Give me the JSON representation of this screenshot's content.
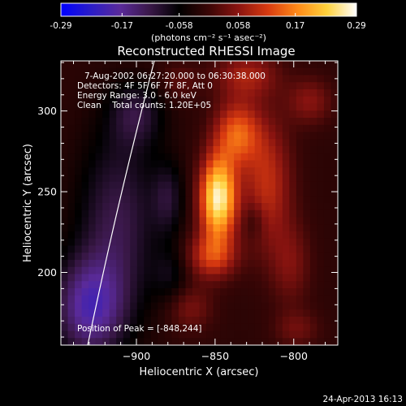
{
  "figure": {
    "title": "Reconstructed RHESSI Image",
    "info_lines": [
      "7-Aug-2002 06:27:20.000 to 06:30:38.000",
      "Detectors: 4F 5F 6F 7F 8F, Att 0",
      "Energy Range: 3.0 - 6.0 keV",
      "Clean    Total counts: 1.20E+05"
    ],
    "peak_label": "Position of Peak = [-848,244]",
    "footer_date": "24-Apr-2013 16:13"
  },
  "colorbar": {
    "ticks": [
      "-0.29",
      "-0.17",
      "-0.058",
      "0.058",
      "0.17",
      "0.29"
    ],
    "tick_values": [
      -0.29,
      -0.17,
      -0.058,
      0.058,
      0.17,
      0.29
    ],
    "range": [
      -0.29,
      0.29
    ],
    "unit_label": "(photons cm⁻² s⁻¹ asec⁻²)"
  },
  "colors": {
    "background": "#000000",
    "text": "#ffffff",
    "cmap": [
      "#0000ff",
      "#2a1cc8",
      "#5a2a9a",
      "#3a1848",
      "#000000",
      "#3a0606",
      "#8a1410",
      "#d83a10",
      "#ff8a18",
      "#ffd23c",
      "#ffffff"
    ]
  },
  "chart_data": {
    "type": "heatmap",
    "title": "Reconstructed RHESSI Image",
    "xlabel": "Heliocentric X (arcsec)",
    "ylabel": "Heliocentric Y (arcsec)",
    "xlim": [
      -948,
      -772
    ],
    "ylim": [
      155,
      331
    ],
    "xticks": [
      -900,
      -850,
      -800
    ],
    "xtick_labels": [
      "−900",
      "−850",
      "−800"
    ],
    "yticks": [
      200,
      250,
      300
    ],
    "ytick_labels": [
      "200",
      "250",
      "300"
    ],
    "peak": [
      -848,
      244
    ],
    "colorbar_range": [
      -0.29,
      0.29
    ],
    "sources": [
      {
        "x": -848,
        "y": 246,
        "sx": 8,
        "sy": 18,
        "amp": 0.29
      },
      {
        "x": -836,
        "y": 286,
        "sx": 10,
        "sy": 14,
        "amp": 0.15
      },
      {
        "x": -852,
        "y": 210,
        "sx": 11,
        "sy": 10,
        "amp": 0.12
      },
      {
        "x": -817,
        "y": 255,
        "sx": 11,
        "sy": 28,
        "amp": 0.11
      },
      {
        "x": -830,
        "y": 322,
        "sx": 14,
        "sy": 10,
        "amp": 0.09
      },
      {
        "x": -873,
        "y": 318,
        "sx": 9,
        "sy": 8,
        "amp": 0.04
      },
      {
        "x": -790,
        "y": 306,
        "sx": 10,
        "sy": 10,
        "amp": 0.07
      },
      {
        "x": -802,
        "y": 205,
        "sx": 9,
        "sy": 18,
        "amp": 0.06
      },
      {
        "x": -866,
        "y": 178,
        "sx": 10,
        "sy": 10,
        "amp": 0.06
      },
      {
        "x": -798,
        "y": 165,
        "sx": 10,
        "sy": 8,
        "amp": 0.05
      },
      {
        "x": -912,
        "y": 232,
        "sx": 18,
        "sy": 40,
        "amp": -0.1
      },
      {
        "x": -930,
        "y": 178,
        "sx": 16,
        "sy": 22,
        "amp": -0.16
      },
      {
        "x": -880,
        "y": 246,
        "sx": 7,
        "sy": 16,
        "amp": -0.07
      },
      {
        "x": -900,
        "y": 298,
        "sx": 12,
        "sy": 14,
        "amp": -0.08
      },
      {
        "x": -878,
        "y": 198,
        "sx": 8,
        "sy": 12,
        "amp": -0.05
      },
      {
        "x": -825,
        "y": 232,
        "sx": 5,
        "sy": 8,
        "amp": -0.04
      }
    ]
  }
}
